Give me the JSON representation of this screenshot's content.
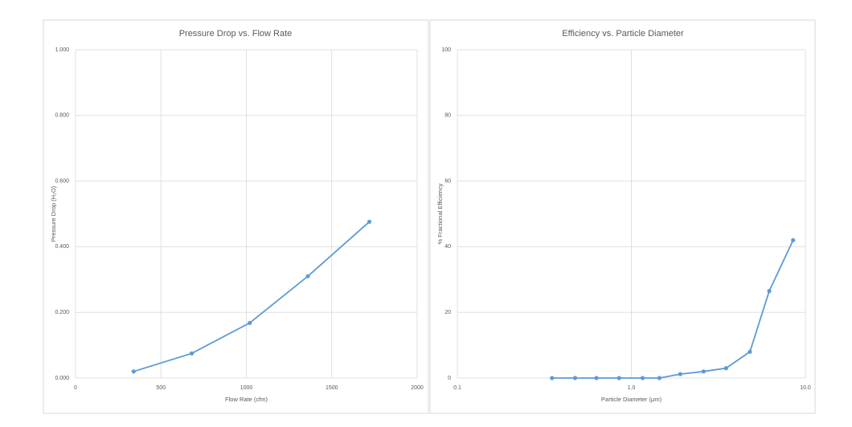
{
  "chart_data": [
    {
      "type": "line",
      "title": "Pressure Drop vs. Flow Rate",
      "xlabel": "Flow Rate (cfm)",
      "ylabel": "Pressure Drop (H₂O)",
      "x": [
        340,
        680,
        1020,
        1360,
        1720
      ],
      "values": [
        0.02,
        0.075,
        0.168,
        0.31,
        0.476
      ],
      "color": "#5b9bd5",
      "xlim": [
        0,
        2000
      ],
      "xticks": [
        0,
        500,
        1000,
        1500,
        2000
      ],
      "ylim": [
        0,
        1
      ],
      "yticks": [
        {
          "value": 0,
          "label": "0.000"
        },
        {
          "value": 0.2,
          "label": "0.200"
        },
        {
          "value": 0.4,
          "label": "0.400"
        },
        {
          "value": 0.6,
          "label": "0.600"
        },
        {
          "value": 0.8,
          "label": "0.800"
        },
        {
          "value": 1,
          "label": "1.000"
        }
      ],
      "xscale": "linear",
      "grid": true
    },
    {
      "type": "line",
      "title": "Efficiency vs. Particle Diameter",
      "xlabel": "Particle Diameter (μm)",
      "ylabel": "% Fractional Efficiency",
      "x": [
        0.35,
        0.475,
        0.63,
        0.85,
        1.16,
        1.45,
        1.91,
        2.6,
        3.5,
        4.8,
        6.2,
        8.5
      ],
      "values": [
        0,
        0,
        0,
        0,
        0,
        0,
        1.2,
        2,
        3,
        8,
        26.5,
        42
      ],
      "color": "#5b9bd5",
      "xlim": [
        0.1,
        10
      ],
      "xticks": [
        0.1,
        {
          "value": 1,
          "label": "1.0"
        },
        {
          "value": 10,
          "label": "10.0"
        }
      ],
      "ylim": [
        0,
        100
      ],
      "yticks": [
        0,
        20,
        40,
        60,
        80,
        100
      ],
      "xscale": "log",
      "grid": true
    }
  ]
}
